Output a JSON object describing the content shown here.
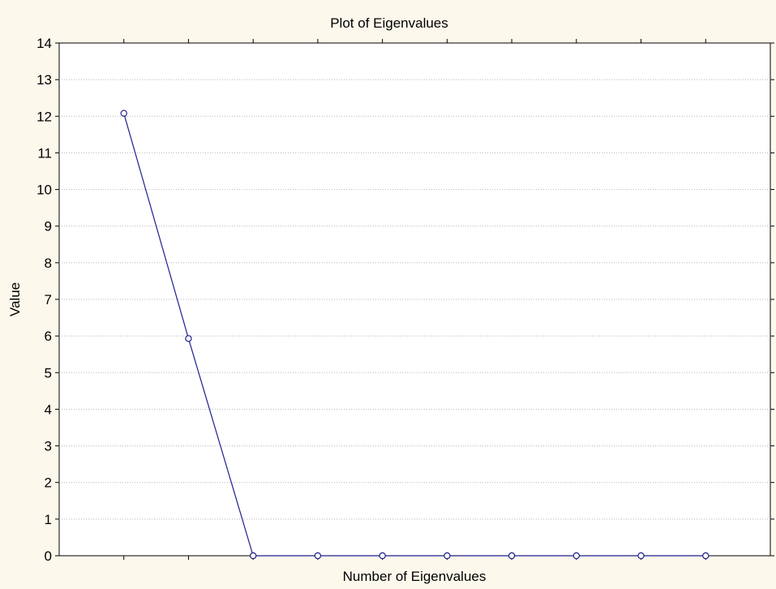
{
  "colors": {
    "background": "#fcf8ec",
    "plot_area": "#ffffff",
    "series": "#1f1f8f"
  },
  "chart_data": {
    "type": "line",
    "title": "Plot of Eigenvalues",
    "xlabel": "Number of Eigenvalues",
    "ylabel": "Value",
    "x": [
      1,
      2,
      3,
      4,
      5,
      6,
      7,
      8,
      9,
      10
    ],
    "x_tick_labels": [],
    "xlim": [
      0,
      11
    ],
    "ylim": [
      0,
      14
    ],
    "y_ticks": [
      0,
      1,
      2,
      3,
      4,
      5,
      6,
      7,
      8,
      9,
      10,
      11,
      12,
      13,
      14
    ],
    "grid": "horizontal-dotted",
    "marker": "open-circle",
    "series": [
      {
        "values": [
          12.08,
          5.93,
          0.0,
          0.0,
          0.0,
          0.0,
          0.0,
          0.0,
          0.0,
          0.0
        ]
      }
    ]
  }
}
